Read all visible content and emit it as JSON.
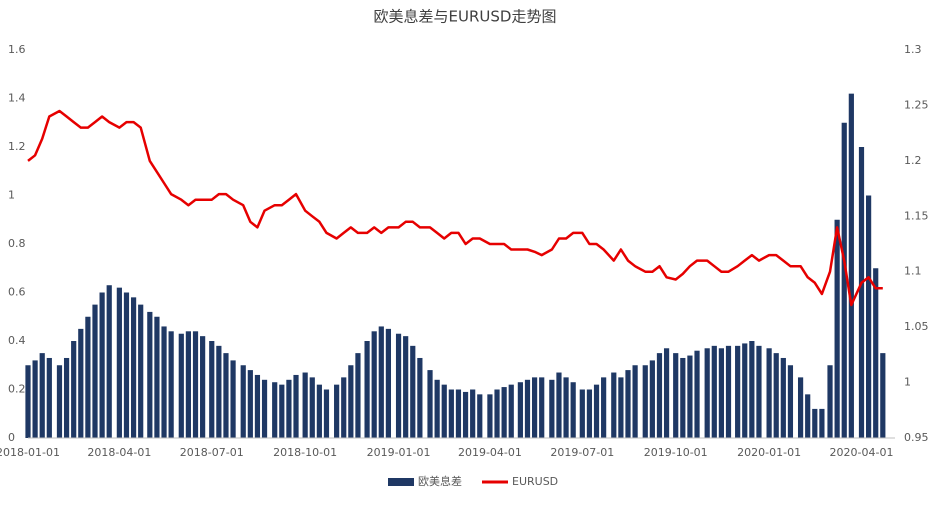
{
  "chart_data": {
    "type": "bar",
    "title": "欧美息差与EURUSD走势图",
    "x": [
      "2018-01-01",
      "2018-01-08",
      "2018-01-15",
      "2018-01-22",
      "2018-02-01",
      "2018-02-08",
      "2018-02-15",
      "2018-02-22",
      "2018-03-01",
      "2018-03-08",
      "2018-03-15",
      "2018-03-22",
      "2018-04-01",
      "2018-04-08",
      "2018-04-15",
      "2018-04-22",
      "2018-05-01",
      "2018-05-08",
      "2018-05-15",
      "2018-05-22",
      "2018-06-01",
      "2018-06-08",
      "2018-06-15",
      "2018-06-22",
      "2018-07-01",
      "2018-07-08",
      "2018-07-15",
      "2018-07-22",
      "2018-08-01",
      "2018-08-08",
      "2018-08-15",
      "2018-08-22",
      "2018-09-01",
      "2018-09-08",
      "2018-09-15",
      "2018-09-22",
      "2018-10-01",
      "2018-10-08",
      "2018-10-15",
      "2018-10-22",
      "2018-11-01",
      "2018-11-08",
      "2018-11-15",
      "2018-11-22",
      "2018-12-01",
      "2018-12-08",
      "2018-12-15",
      "2018-12-22",
      "2019-01-01",
      "2019-01-08",
      "2019-01-15",
      "2019-01-22",
      "2019-02-01",
      "2019-02-08",
      "2019-02-15",
      "2019-02-22",
      "2019-03-01",
      "2019-03-08",
      "2019-03-15",
      "2019-03-22",
      "2019-04-01",
      "2019-04-08",
      "2019-04-15",
      "2019-04-22",
      "2019-05-01",
      "2019-05-08",
      "2019-05-15",
      "2019-05-22",
      "2019-06-01",
      "2019-06-08",
      "2019-06-15",
      "2019-06-22",
      "2019-07-01",
      "2019-07-08",
      "2019-07-15",
      "2019-07-22",
      "2019-08-01",
      "2019-08-08",
      "2019-08-15",
      "2019-08-22",
      "2019-09-01",
      "2019-09-08",
      "2019-09-15",
      "2019-09-22",
      "2019-10-01",
      "2019-10-08",
      "2019-10-15",
      "2019-10-22",
      "2019-11-01",
      "2019-11-08",
      "2019-11-15",
      "2019-11-22",
      "2019-12-01",
      "2019-12-08",
      "2019-12-15",
      "2019-12-22",
      "2020-01-01",
      "2020-01-08",
      "2020-01-15",
      "2020-01-22",
      "2020-02-01",
      "2020-02-08",
      "2020-02-15",
      "2020-02-22",
      "2020-03-01",
      "2020-03-08",
      "2020-03-15",
      "2020-03-22",
      "2020-04-01",
      "2020-04-08",
      "2020-04-15",
      "2020-04-22"
    ],
    "series": [
      {
        "name": "欧美息差",
        "type": "bar",
        "color": "#1f3864",
        "values": [
          0.3,
          0.32,
          0.35,
          0.33,
          0.3,
          0.33,
          0.4,
          0.45,
          0.5,
          0.55,
          0.6,
          0.63,
          0.62,
          0.6,
          0.58,
          0.55,
          0.52,
          0.5,
          0.46,
          0.44,
          0.43,
          0.44,
          0.44,
          0.42,
          0.4,
          0.38,
          0.35,
          0.32,
          0.3,
          0.28,
          0.26,
          0.24,
          0.23,
          0.22,
          0.24,
          0.26,
          0.27,
          0.25,
          0.22,
          0.2,
          0.22,
          0.25,
          0.3,
          0.35,
          0.4,
          0.44,
          0.46,
          0.45,
          0.43,
          0.42,
          0.38,
          0.33,
          0.28,
          0.24,
          0.22,
          0.2,
          0.2,
          0.19,
          0.2,
          0.18,
          0.18,
          0.2,
          0.21,
          0.22,
          0.23,
          0.24,
          0.25,
          0.25,
          0.24,
          0.27,
          0.25,
          0.23,
          0.2,
          0.2,
          0.22,
          0.25,
          0.27,
          0.25,
          0.28,
          0.3,
          0.3,
          0.32,
          0.35,
          0.37,
          0.35,
          0.33,
          0.34,
          0.36,
          0.37,
          0.38,
          0.37,
          0.38,
          0.38,
          0.39,
          0.4,
          0.38,
          0.37,
          0.35,
          0.33,
          0.3,
          0.25,
          0.18,
          0.12,
          0.12,
          0.3,
          0.9,
          1.3,
          1.42,
          1.2,
          1.0,
          0.7,
          0.35
        ]
      },
      {
        "name": "EURUSD",
        "type": "line",
        "axis": "y2",
        "color": "#e60000",
        "values": [
          1.2,
          1.205,
          1.22,
          1.24,
          1.245,
          1.24,
          1.235,
          1.23,
          1.23,
          1.235,
          1.24,
          1.235,
          1.23,
          1.235,
          1.235,
          1.23,
          1.2,
          1.19,
          1.18,
          1.17,
          1.165,
          1.16,
          1.165,
          1.165,
          1.165,
          1.17,
          1.17,
          1.165,
          1.16,
          1.145,
          1.14,
          1.155,
          1.16,
          1.16,
          1.165,
          1.17,
          1.155,
          1.15,
          1.145,
          1.135,
          1.13,
          1.135,
          1.14,
          1.135,
          1.135,
          1.14,
          1.135,
          1.14,
          1.14,
          1.145,
          1.145,
          1.14,
          1.14,
          1.135,
          1.13,
          1.135,
          1.135,
          1.125,
          1.13,
          1.13,
          1.125,
          1.125,
          1.125,
          1.12,
          1.12,
          1.12,
          1.118,
          1.115,
          1.12,
          1.13,
          1.13,
          1.135,
          1.135,
          1.125,
          1.125,
          1.12,
          1.11,
          1.12,
          1.11,
          1.105,
          1.1,
          1.1,
          1.105,
          1.095,
          1.093,
          1.098,
          1.105,
          1.11,
          1.11,
          1.105,
          1.1,
          1.1,
          1.105,
          1.11,
          1.115,
          1.11,
          1.115,
          1.115,
          1.11,
          1.105,
          1.105,
          1.095,
          1.09,
          1.08,
          1.1,
          1.14,
          1.11,
          1.07,
          1.09,
          1.095,
          1.085,
          1.085
        ]
      }
    ],
    "xlim": [
      "2018-01-01",
      "2020-05-04"
    ],
    "xticks": [
      "2018-01-01",
      "2018-04-01",
      "2018-07-01",
      "2018-10-01",
      "2019-01-01",
      "2019-04-01",
      "2019-07-01",
      "2019-10-01",
      "2020-01-01",
      "2020-04-01"
    ],
    "ylim": [
      0,
      1.6
    ],
    "yticks": [
      0,
      0.2,
      0.4,
      0.6,
      0.8,
      1,
      1.2,
      1.4,
      1.6
    ],
    "y2lim": [
      0.95,
      1.3
    ],
    "y2ticks": [
      0.95,
      1,
      1.05,
      1.1,
      1.15,
      1.2,
      1.25,
      1.3
    ],
    "legend": "bottom"
  }
}
